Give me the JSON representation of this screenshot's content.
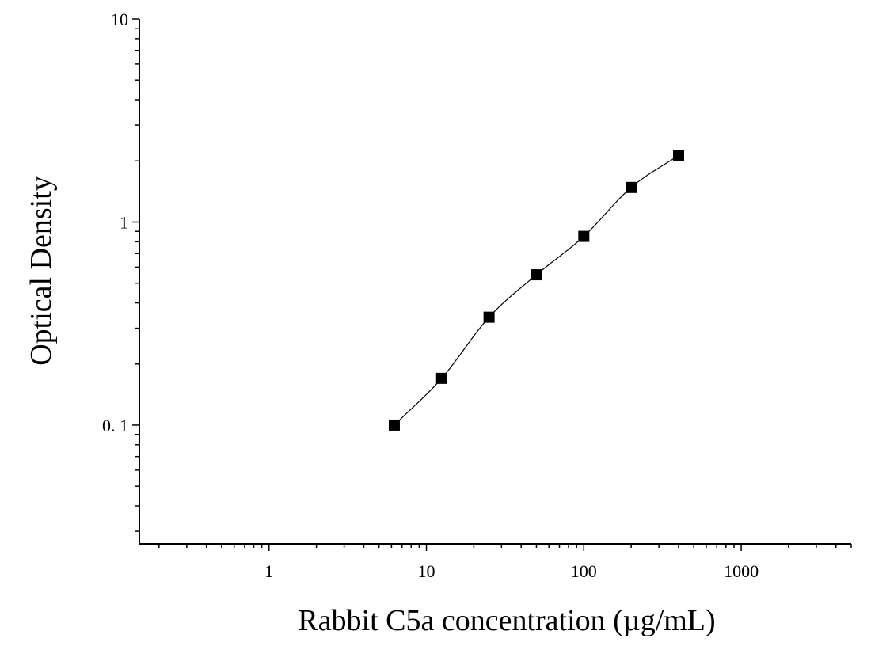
{
  "chart_data": {
    "type": "scatter",
    "title": "",
    "xlabel": "Rabbit C5a concentration (µg/mL)",
    "ylabel": "Optical Density",
    "xscale": "log",
    "yscale": "log",
    "xlim": [
      0.15,
      5000
    ],
    "ylim": [
      0.026,
      10
    ],
    "x_tick_labels": [
      "1",
      "10",
      "100",
      "1000"
    ],
    "x_tick_values": [
      1,
      10,
      100,
      1000
    ],
    "y_tick_labels": [
      "0. 1",
      "1",
      "10"
    ],
    "y_tick_values": [
      0.1,
      1,
      10
    ],
    "grid": false,
    "legend": "none",
    "series": [
      {
        "x": [
          6.25,
          12.5,
          25,
          50,
          100,
          200,
          400
        ],
        "y": [
          0.1,
          0.17,
          0.34,
          0.55,
          0.85,
          1.48,
          2.13
        ],
        "marker": "square",
        "fit_line": true
      }
    ],
    "colors": {
      "marker": "#000000",
      "line": "#000000",
      "axis": "#000000"
    }
  }
}
